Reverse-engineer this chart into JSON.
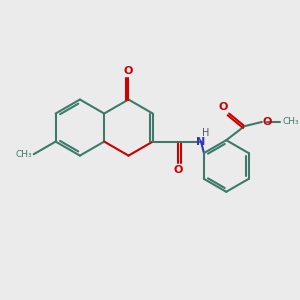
{
  "bg_color": "#ebebeb",
  "bond_color": "#3d7a6a",
  "bond_width": 1.5,
  "o_color": "#cc0000",
  "n_color": "#3333bb",
  "text_color": "#555555",
  "font_size": 8.0,
  "fig_size": [
    3.0,
    3.0
  ],
  "dpi": 100,
  "xlim": [
    0,
    10
  ],
  "ylim": [
    0,
    10
  ]
}
